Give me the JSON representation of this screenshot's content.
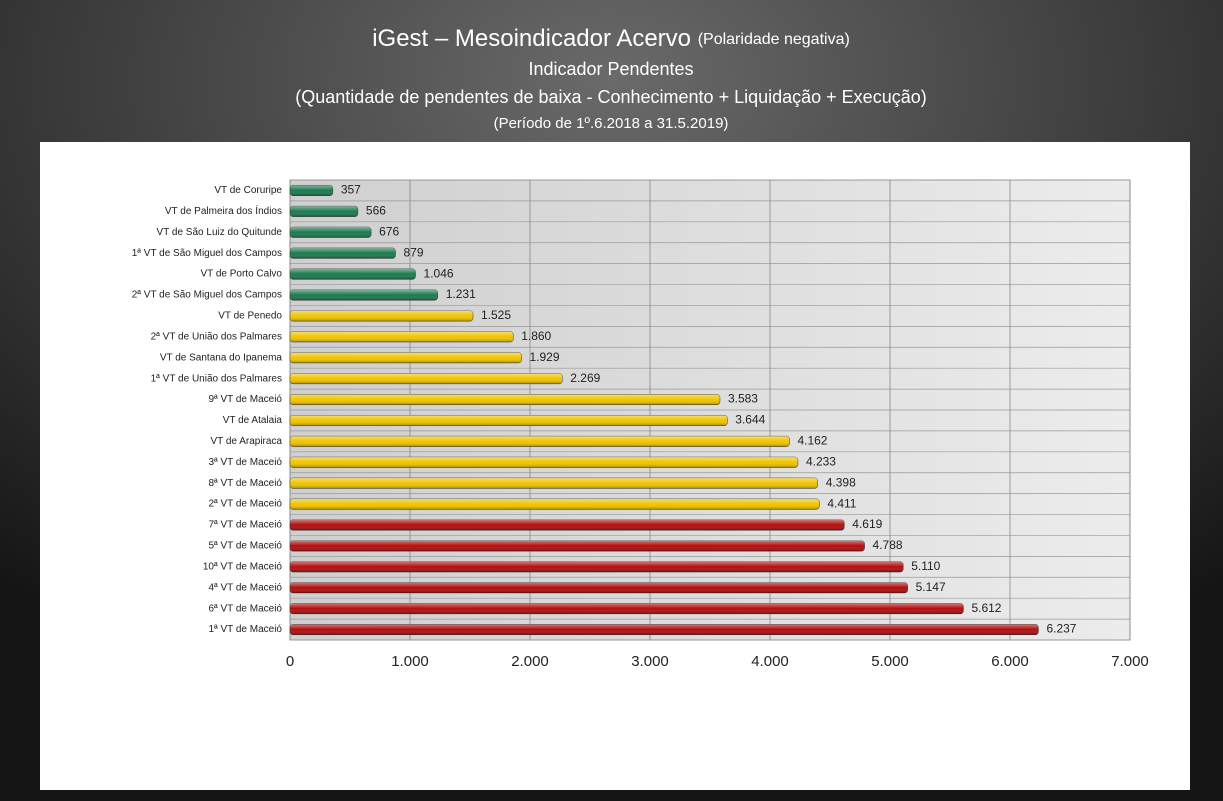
{
  "chart_data": {
    "type": "bar",
    "orientation": "horizontal",
    "title": "iGest – Mesoindicador Acervo",
    "title_note": "(Polaridade negativa)",
    "subtitle": "Indicador Pendentes",
    "description": "(Quantidade de pendentes de baixa - Conhecimento + Liquidação + Execução)",
    "period": "(Período de 1º.6.2018  a  31.5.2019)",
    "categories": [
      "VT de Coruripe",
      "VT de Palmeira dos Índios",
      "VT de São Luiz do Quitunde",
      "1ª VT de São Miguel dos Campos",
      "VT de Porto Calvo",
      "2ª VT de São Miguel dos Campos",
      "VT de Penedo",
      "2ª VT de União dos Palmares",
      "VT de Santana do Ipanema",
      "1ª VT de União dos Palmares",
      "9ª VT de Maceió",
      "VT de Atalaia",
      "VT de Arapiraca",
      "3ª VT de Maceió",
      "8ª VT de Maceió",
      "2ª VT de Maceió",
      "7ª VT de Maceió",
      "5ª VT de Maceió",
      "10ª VT de Maceió",
      "4ª VT de Maceió",
      "6ª VT de Maceió",
      "1ª VT de Maceió"
    ],
    "values": [
      357,
      566,
      676,
      879,
      1046,
      1231,
      1525,
      1860,
      1929,
      2269,
      3583,
      3644,
      4162,
      4233,
      4398,
      4411,
      4619,
      4788,
      5110,
      5147,
      5612,
      6237
    ],
    "value_labels": [
      "357",
      "566",
      "676",
      "879",
      "1.046",
      "1.231",
      "1.525",
      "1.860",
      "1.929",
      "2.269",
      "3.583",
      "3.644",
      "4.162",
      "4.233",
      "4.398",
      "4.411",
      "4.619",
      "4.788",
      "5.110",
      "5.147",
      "5.612",
      "6.237"
    ],
    "colors": [
      "#1b7a4e",
      "#1b7a4e",
      "#1b7a4e",
      "#1b7a4e",
      "#1b7a4e",
      "#1b7a4e",
      "#f0c400",
      "#f0c400",
      "#f0c400",
      "#f0c400",
      "#f0c400",
      "#f0c400",
      "#f0c400",
      "#f0c400",
      "#f0c400",
      "#f0c400",
      "#b20d0d",
      "#b20d0d",
      "#b20d0d",
      "#b20d0d",
      "#b20d0d",
      "#b20d0d"
    ],
    "xlim": [
      0,
      7000
    ],
    "xticks": [
      0,
      {
        "value": 1000,
        "label": "1.000"
      },
      {
        "value": 2000,
        "label": "2.000"
      },
      {
        "value": 3000,
        "label": "3.000"
      },
      {
        "value": 4000,
        "label": "4.000"
      },
      {
        "value": 5000,
        "label": "5.000"
      },
      {
        "value": 6000,
        "label": "6.000"
      },
      {
        "value": 7000,
        "label": "7.000"
      }
    ],
    "grid": true
  }
}
